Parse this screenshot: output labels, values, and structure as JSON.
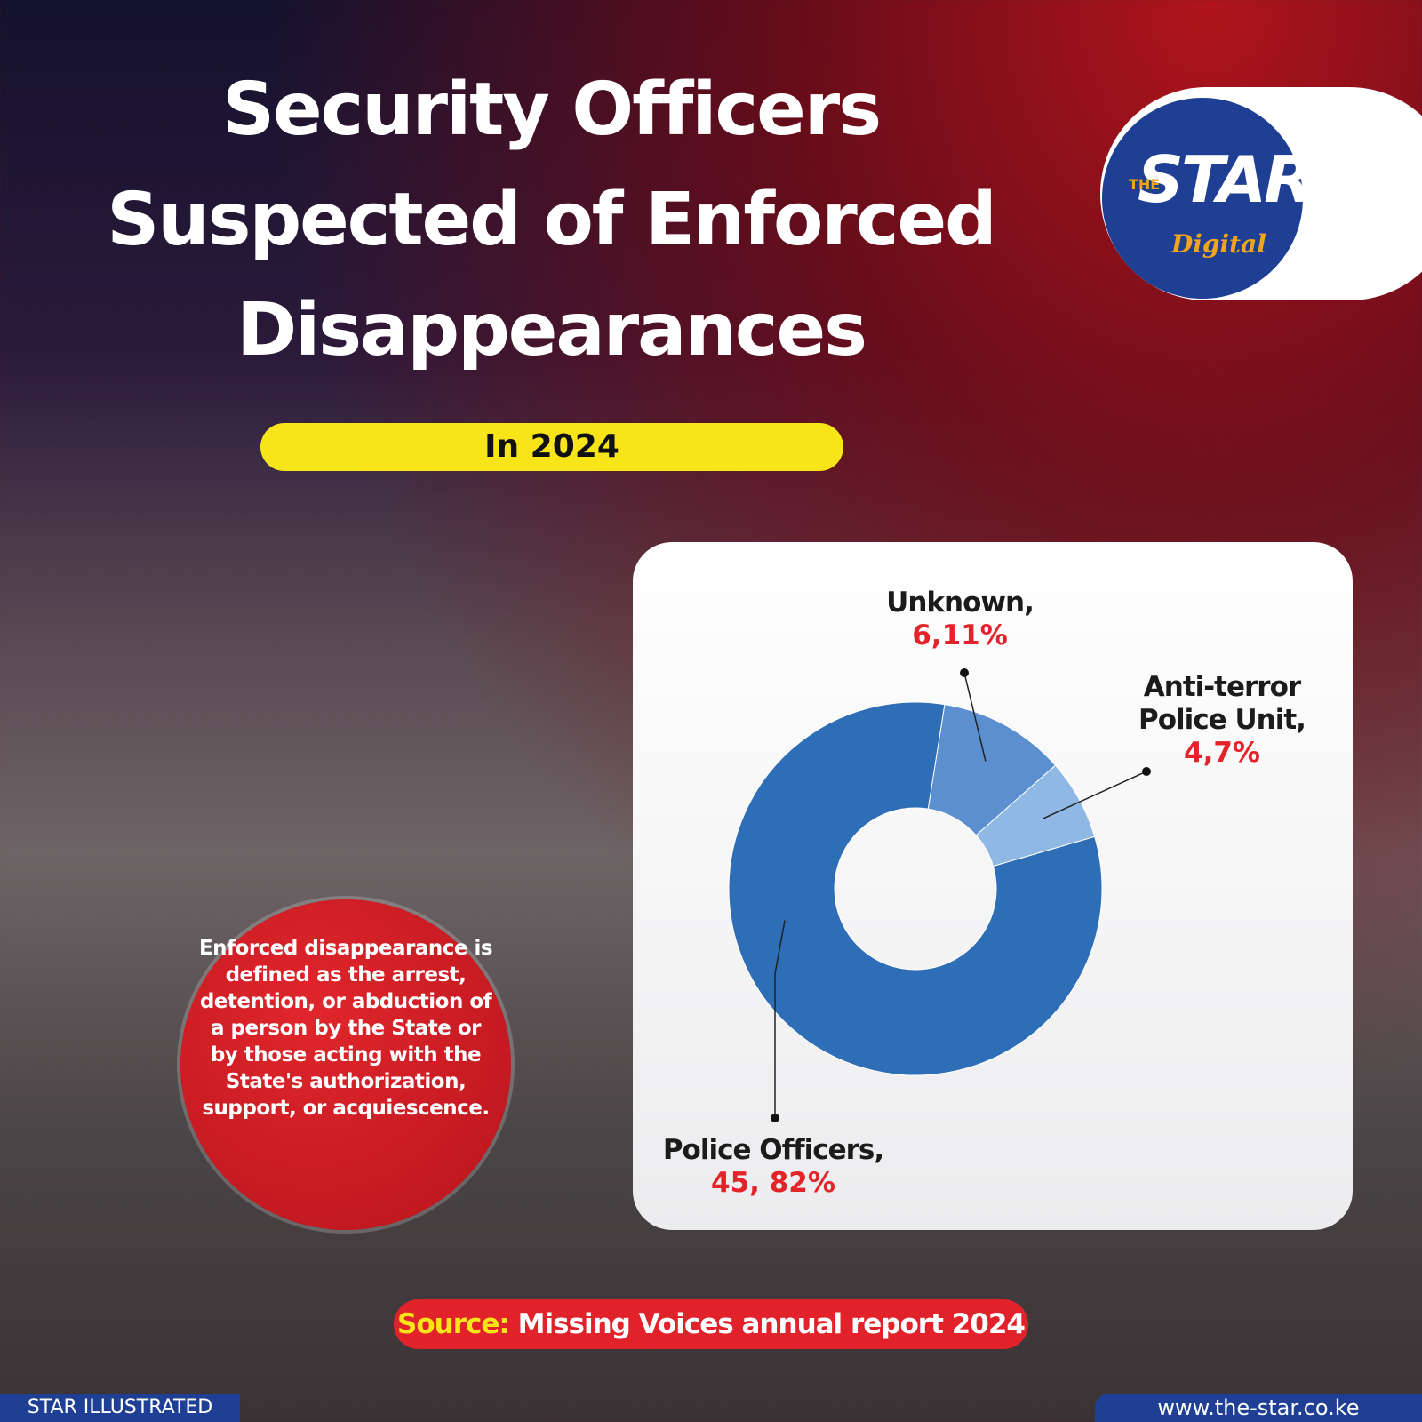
{
  "header": {
    "title": [
      "Security Officers",
      "Suspected of Enforced",
      "Disappearances"
    ],
    "subtitle": "In 2024"
  },
  "logo": {
    "small": "THE",
    "main": "STAR",
    "sub": "Digital"
  },
  "chart_data": {
    "type": "donut",
    "categories": [
      "Unknown,",
      "Anti-terror Police Unit,",
      "Police Officers,"
    ],
    "values": [
      11,
      7,
      82
    ],
    "value_labels": [
      "6,11%",
      "4,7%",
      "45, 82%"
    ],
    "colors": [
      "#5b8fd0",
      "#8fb9e4",
      "#2e6eb6"
    ]
  },
  "note": "Enforced disappearance is defined as the arrest, detention, or abduction of a person by the State or by those acting with the State's authorization, support, or acquiescence.",
  "source": {
    "label": "Source:",
    "text": "Missing Voices annual report 2024"
  },
  "footer": {
    "left": "STAR ILLUSTRATED",
    "right": "www.the-star.co.ke"
  }
}
